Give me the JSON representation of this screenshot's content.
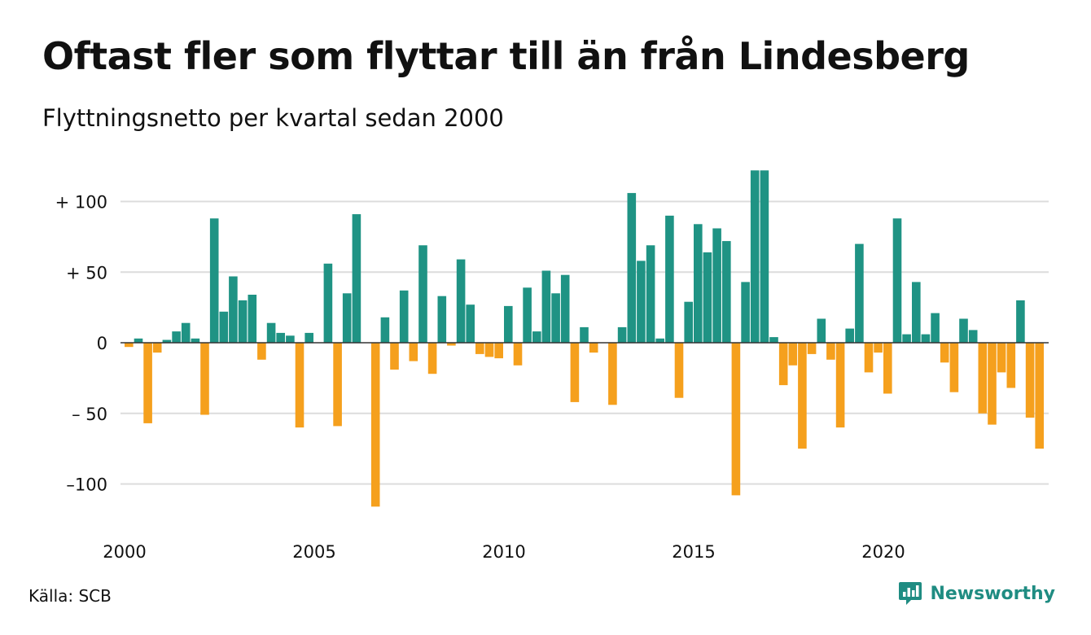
{
  "header": {
    "title": "Oftast fler som flyttar till än från Lindesberg",
    "subtitle": "Flyttningsnetto per kvartal sedan 2000"
  },
  "footer": {
    "source": "Källa: SCB",
    "brand": "Newsworthy",
    "brand_icon": "newsworthy-logo-icon"
  },
  "colors": {
    "positive": "#1f9384",
    "negative": "#f5a01d",
    "grid": "#dcdcdc",
    "brand": "#1f8c82"
  },
  "chart_data": {
    "type": "bar",
    "x_start": "2000 Q1",
    "ylim": [
      -128,
      122
    ],
    "y_ticks": [
      {
        "value": 100,
        "label": "+ 100"
      },
      {
        "value": 50,
        "label": "+  50"
      },
      {
        "value": 0,
        "label": "0"
      },
      {
        "value": -50,
        "label": "– 50"
      },
      {
        "value": -100,
        "label": "–100"
      }
    ],
    "x_ticks": [
      "2000",
      "2005",
      "2010",
      "2015",
      "2020"
    ],
    "grid": true,
    "values": [
      -3,
      3,
      -57,
      -7,
      2,
      8,
      14,
      3,
      -51,
      88,
      22,
      47,
      30,
      34,
      -12,
      14,
      7,
      5,
      -60,
      7,
      0,
      56,
      -59,
      35,
      91,
      0,
      -116,
      18,
      -19,
      37,
      -13,
      69,
      -22,
      33,
      -2,
      59,
      27,
      -8,
      -10,
      -11,
      26,
      -16,
      39,
      8,
      51,
      35,
      48,
      -42,
      11,
      -7,
      0,
      -44,
      11,
      106,
      58,
      69,
      3,
      90,
      -39,
      29,
      84,
      64,
      81,
      72,
      -108,
      43,
      122,
      122,
      4,
      -30,
      -16,
      -75,
      -8,
      17,
      -12,
      -60,
      10,
      70,
      -21,
      -7,
      -36,
      88,
      6,
      43,
      6,
      21,
      -14,
      -35,
      17,
      9,
      -50,
      -58,
      -21,
      -32,
      30,
      -53,
      -75
    ]
  }
}
